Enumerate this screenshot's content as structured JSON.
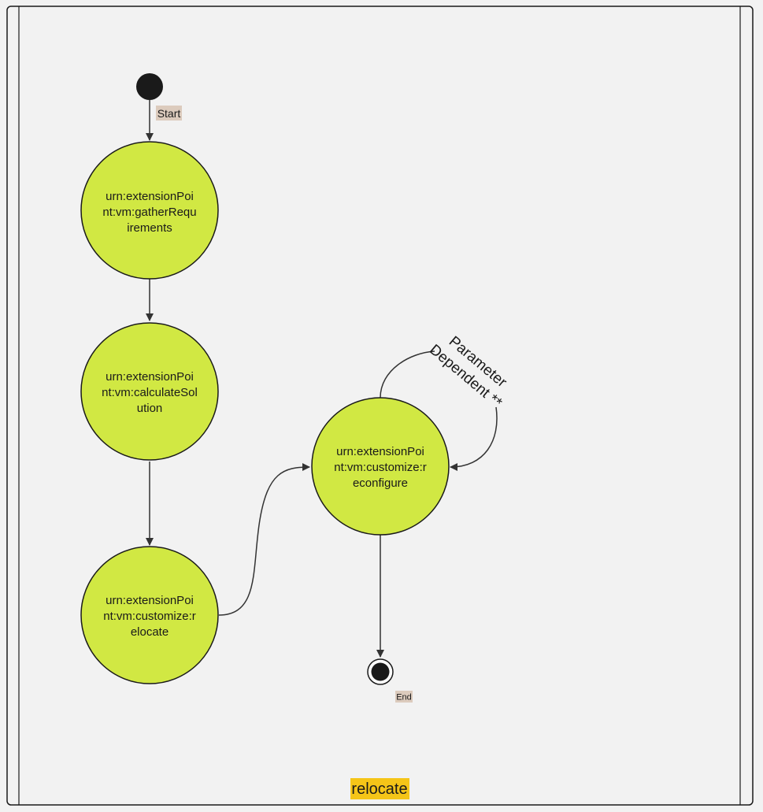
{
  "frame": {
    "title": "relocate",
    "title_highlight": "#f5c518"
  },
  "colors": {
    "node_fill": "#d1e843",
    "stroke": "#1a1a1a",
    "tag_bg": "#dccbbd",
    "background": "#f2f2f2"
  },
  "start": {
    "label": "Start"
  },
  "end": {
    "label": "End"
  },
  "nodes": [
    {
      "id": "gatherRequirements",
      "lines": [
        "urn:extensionPoi",
        "nt:vm:gatherRequ",
        "irements"
      ]
    },
    {
      "id": "calculateSolution",
      "lines": [
        "urn:extensionPoi",
        "nt:vm:calculateSol",
        "ution"
      ]
    },
    {
      "id": "relocate",
      "lines": [
        "urn:extensionPoi",
        "nt:vm:customize:r",
        "elocate"
      ]
    },
    {
      "id": "reconfigure",
      "lines": [
        "urn:extensionPoi",
        "nt:vm:customize:r",
        "econfigure"
      ]
    }
  ],
  "self_loop_label": {
    "lines": [
      "Parameter",
      "Dependent **"
    ]
  }
}
